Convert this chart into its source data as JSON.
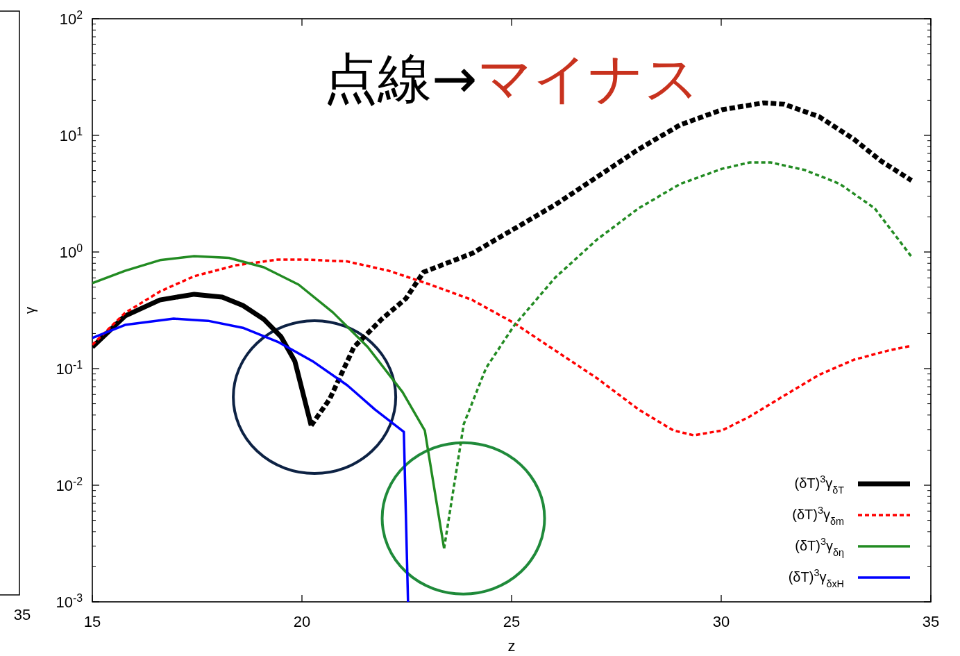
{
  "chart_data": [
    {
      "type": "other",
      "annotations": [
        "35"
      ]
    },
    {
      "type": "line",
      "title": "点線→",
      "subtitle": "マイナス",
      "xlabel": "z",
      "ylabel": "γ",
      "log": "y",
      "grid": false,
      "legend": "bottom right",
      "xlim": [
        15,
        35
      ],
      "xticks": [
        15,
        20,
        25,
        30,
        35
      ],
      "ylim": [
        0.001,
        100
      ],
      "yticks": [
        {
          "value": 0.001,
          "label": "10$^{-3}$"
        },
        {
          "value": 0.01,
          "label": "10$^{-2}$"
        },
        {
          "value": 0.1,
          "label": "10$^{-1}$"
        },
        {
          "value": 1,
          "label": "10$^{0}$"
        },
        {
          "value": 10,
          "label": "10$^{1}$"
        },
        {
          "value": 100,
          "label": "10$^{2}$"
        }
      ],
      "series": [
        {
          "name": "(δT)$^{3}$γ$_{δT}$",
          "color": "#000000",
          "line_style": "solid",
          "x": [
            15,
            15.78,
            16.61,
            17.43,
            18.1,
            18.59,
            19.09,
            19.5,
            19.83,
            20.22
          ],
          "values": [
            0.153,
            0.283,
            0.388,
            0.434,
            0.41,
            0.348,
            0.265,
            0.188,
            0.116,
            0.0325
          ]
        },
        {
          "color": "#000000",
          "line_style": "dashed",
          "x": [
            20.22,
            20.66,
            21.24,
            21.9,
            22.48,
            22.9,
            24.06,
            25.05,
            26.04,
            27.04,
            28.03,
            29.02,
            30.02,
            31.01,
            31.5,
            32.33,
            33.16,
            33.82,
            34.54
          ],
          "values": [
            0.0325,
            0.0547,
            0.153,
            0.265,
            0.399,
            0.672,
            0.973,
            1.57,
            2.54,
            4.4,
            7.6,
            12.3,
            16.6,
            19.0,
            18.5,
            14.5,
            9.3,
            6.0,
            4.1
          ]
        },
        {
          "name": "(δT)$^{3}$γ$_{δm}$",
          "color": "#ff0000",
          "line_style": "dashed",
          "x": [
            15,
            15.78,
            16.61,
            17.43,
            18.43,
            19.42,
            20.08,
            21.08,
            22.07,
            23.06,
            24.06,
            25.05,
            26.04,
            27.04,
            28.03,
            28.86,
            29.35,
            30.02,
            30.68,
            31.5,
            32.33,
            33.16,
            33.99,
            34.54
          ],
          "values": [
            0.16,
            0.3,
            0.458,
            0.62,
            0.77,
            0.86,
            0.86,
            0.83,
            0.69,
            0.525,
            0.388,
            0.247,
            0.143,
            0.0826,
            0.0446,
            0.0295,
            0.0268,
            0.0295,
            0.0388,
            0.0586,
            0.0883,
            0.119,
            0.143,
            0.157
          ]
        },
        {
          "name": "(δT)$^{3}$γ$_{δη}$",
          "color": "#228b22",
          "line_style": "solid",
          "x": [
            15,
            15.78,
            16.61,
            17.43,
            18.26,
            19.09,
            19.92,
            20.74,
            21.57,
            22.4,
            22.93,
            23.39
          ],
          "values": [
            0.54,
            0.69,
            0.85,
            0.92,
            0.89,
            0.74,
            0.525,
            0.303,
            0.153,
            0.0628,
            0.0295,
            0.00287
          ]
        },
        {
          "color": "#228b22",
          "line_style": "dashed",
          "x": [
            23.39,
            23.86,
            24.39,
            25.05,
            26.04,
            27.04,
            28.03,
            29.02,
            30.02,
            30.68,
            31.18,
            32.0,
            32.83,
            33.66,
            34.54
          ],
          "values": [
            0.00287,
            0.0335,
            0.101,
            0.231,
            0.603,
            1.28,
            2.37,
            3.83,
            5.17,
            5.86,
            5.86,
            5.04,
            3.83,
            2.37,
            0.91
          ]
        },
        {
          "name": "(δT)$^{3}$γ$_{δxH}$",
          "color": "#0000ff",
          "line_style": "solid",
          "x": [
            15,
            15.78,
            16.94,
            17.76,
            18.59,
            19.42,
            20.25,
            21.08,
            21.74,
            22.43,
            22.53
          ],
          "values": [
            0.183,
            0.237,
            0.268,
            0.257,
            0.224,
            0.17,
            0.116,
            0.072,
            0.0446,
            0.0287,
            0.001
          ]
        }
      ]
    }
  ]
}
